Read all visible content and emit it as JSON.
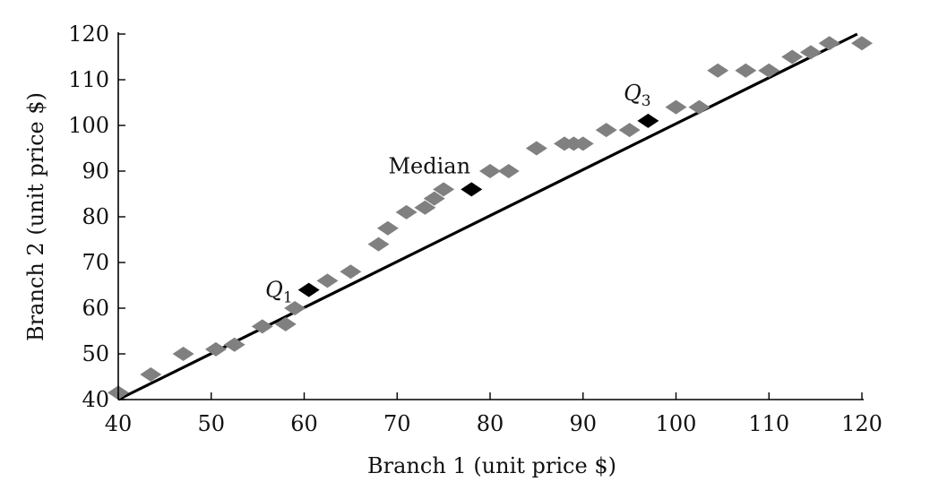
{
  "chart_data": {
    "type": "scatter",
    "xlabel": "Branch 1 (unit price $)",
    "ylabel": "Branch 2 (unit price $)",
    "xlim": [
      40,
      120
    ],
    "ylim": [
      40,
      120
    ],
    "x_ticks": [
      40,
      50,
      60,
      70,
      80,
      90,
      100,
      110,
      120
    ],
    "y_ticks": [
      40,
      50,
      60,
      70,
      80,
      90,
      100,
      110,
      120
    ],
    "grid": false,
    "colors": {
      "points": "#808080",
      "quartiles": "#000000",
      "reference_line": "#000000",
      "axes": "#000000"
    },
    "series": [
      {
        "points": [
          [
            40,
            41.5
          ],
          [
            43.5,
            45.5
          ],
          [
            47,
            50
          ],
          [
            50.5,
            51
          ],
          [
            52.5,
            52
          ],
          [
            55.5,
            56
          ],
          [
            58,
            56.5
          ],
          [
            59,
            60
          ],
          [
            62.5,
            66
          ],
          [
            65,
            68
          ],
          [
            68,
            74
          ],
          [
            69,
            77.5
          ],
          [
            71,
            81
          ],
          [
            73,
            82
          ],
          [
            74,
            84
          ],
          [
            75,
            86
          ],
          [
            80,
            90
          ],
          [
            82,
            90
          ],
          [
            85,
            95
          ],
          [
            88,
            96
          ],
          [
            89,
            96
          ],
          [
            90,
            96
          ],
          [
            92.5,
            99
          ],
          [
            95,
            99
          ],
          [
            100,
            104
          ],
          [
            102.5,
            104
          ],
          [
            104.5,
            112
          ],
          [
            107.5,
            112
          ],
          [
            110,
            112
          ],
          [
            112.5,
            115
          ],
          [
            114.5,
            116
          ],
          [
            116.5,
            118
          ],
          [
            120,
            118
          ]
        ]
      },
      {
        "points": [
          {
            "x": 60.5,
            "y": 64
          },
          {
            "x": 78,
            "y": 86
          },
          {
            "x": 97,
            "y": 101
          }
        ]
      }
    ],
    "reference_line": {
      "from": [
        40,
        40
      ],
      "to": [
        119.5,
        120
      ]
    },
    "annotations": {
      "q1": {
        "base": "Q",
        "sub": "1"
      },
      "median": {
        "text": "Median"
      },
      "q3": {
        "base": "Q",
        "sub": "3"
      }
    }
  }
}
